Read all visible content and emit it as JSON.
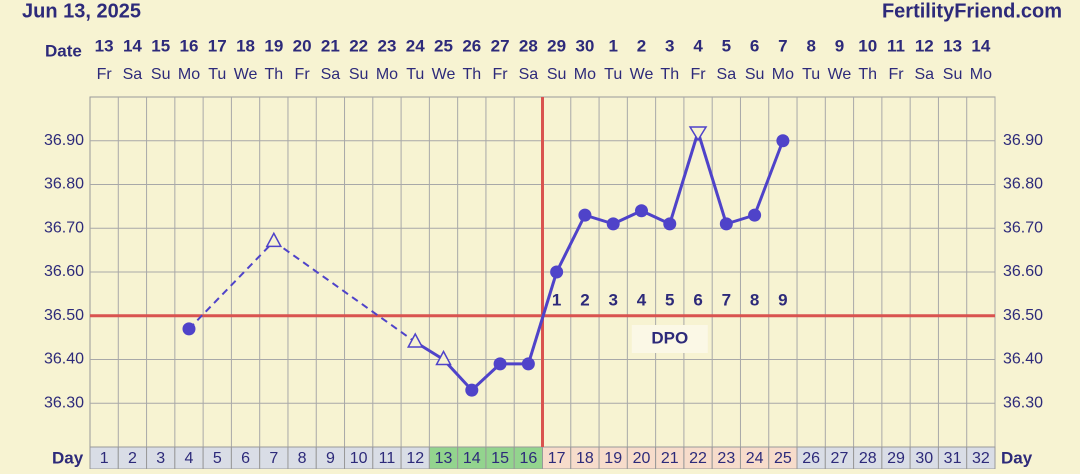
{
  "header": {
    "date": "Jun 13, 2025",
    "site": "FertilityFriend.com"
  },
  "chart_data": {
    "type": "line",
    "date_label": "Date",
    "day_label": "Day",
    "dates": [
      "13",
      "14",
      "15",
      "16",
      "17",
      "18",
      "19",
      "20",
      "21",
      "22",
      "23",
      "24",
      "25",
      "26",
      "27",
      "28",
      "29",
      "30",
      "1",
      "2",
      "3",
      "4",
      "5",
      "6",
      "7",
      "8",
      "9",
      "10",
      "11",
      "12",
      "13",
      "14"
    ],
    "weekdays": [
      "Fr",
      "Sa",
      "Su",
      "Mo",
      "Tu",
      "We",
      "Th",
      "Fr",
      "Sa",
      "Su",
      "Mo",
      "Tu",
      "We",
      "Th",
      "Fr",
      "Sa",
      "Su",
      "Mo",
      "Tu",
      "We",
      "Th",
      "Fr",
      "Sa",
      "Su",
      "Mo",
      "Tu",
      "We",
      "Th",
      "Fr",
      "Sa",
      "Su",
      "Mo"
    ],
    "x": [
      1,
      2,
      3,
      4,
      5,
      6,
      7,
      8,
      9,
      10,
      11,
      12,
      13,
      14,
      15,
      16,
      17,
      18,
      19,
      20,
      21,
      22,
      23,
      24,
      25,
      26,
      27,
      28,
      29,
      30,
      31,
      32
    ],
    "values": [
      null,
      null,
      null,
      36.47,
      null,
      null,
      36.67,
      null,
      null,
      null,
      null,
      36.44,
      36.4,
      36.33,
      36.39,
      36.39,
      36.6,
      36.73,
      36.71,
      36.74,
      36.71,
      36.92,
      36.71,
      36.73,
      36.9,
      null,
      null,
      null,
      null,
      null,
      null,
      null
    ],
    "markers": [
      null,
      null,
      null,
      "dot",
      null,
      null,
      "triangle",
      null,
      null,
      null,
      null,
      "triangle",
      "triangle",
      "dot",
      "dot",
      "dot",
      "dot",
      "dot",
      "dot",
      "dot",
      "dot",
      "triangle-down",
      "dot",
      "dot",
      "dot",
      null,
      null,
      null,
      null,
      null,
      null,
      null
    ],
    "color": "#4f43c9",
    "day_colors": [
      "#d9dde6",
      "#d9dde6",
      "#d9dde6",
      "#d9dde6",
      "#d9dde6",
      "#d9dde6",
      "#d9dde6",
      "#d9dde6",
      "#d9dde6",
      "#d9dde6",
      "#d9dde6",
      "#d9dde6",
      "#93d48e",
      "#93d48e",
      "#93d48e",
      "#93d48e",
      "#f7dccb",
      "#f7dccb",
      "#f7dccb",
      "#f7dccb",
      "#f7dccb",
      "#f7dccb",
      "#f7dccb",
      "#f7dccb",
      "#f7dccb",
      "#d9dde6",
      "#d9dde6",
      "#d9dde6",
      "#d9dde6",
      "#d9dde6",
      "#d9dde6",
      "#d9dde6"
    ],
    "dpo": [
      null,
      null,
      null,
      null,
      null,
      null,
      null,
      null,
      null,
      null,
      null,
      null,
      null,
      null,
      null,
      null,
      "1",
      "2",
      "3",
      "4",
      "5",
      "6",
      "7",
      "8",
      "9",
      null,
      null,
      null,
      null,
      null,
      null,
      null
    ],
    "dpo_label": "DPO",
    "coverline": 36.5,
    "vertical_line_x": 16.5,
    "reference_color": "#d9534f",
    "xlim": [
      0.5,
      32.5
    ],
    "ylim": [
      36.2,
      37.0
    ],
    "yticks": [
      {
        "value": 36.3,
        "label": "36.30"
      },
      {
        "value": 36.4,
        "label": "36.40"
      },
      {
        "value": 36.5,
        "label": "36.50"
      },
      {
        "value": 36.6,
        "label": "36.60"
      },
      {
        "value": 36.7,
        "label": "36.70"
      },
      {
        "value": 36.8,
        "label": "36.80"
      },
      {
        "value": 36.9,
        "label": "36.90"
      }
    ],
    "grid": true
  }
}
